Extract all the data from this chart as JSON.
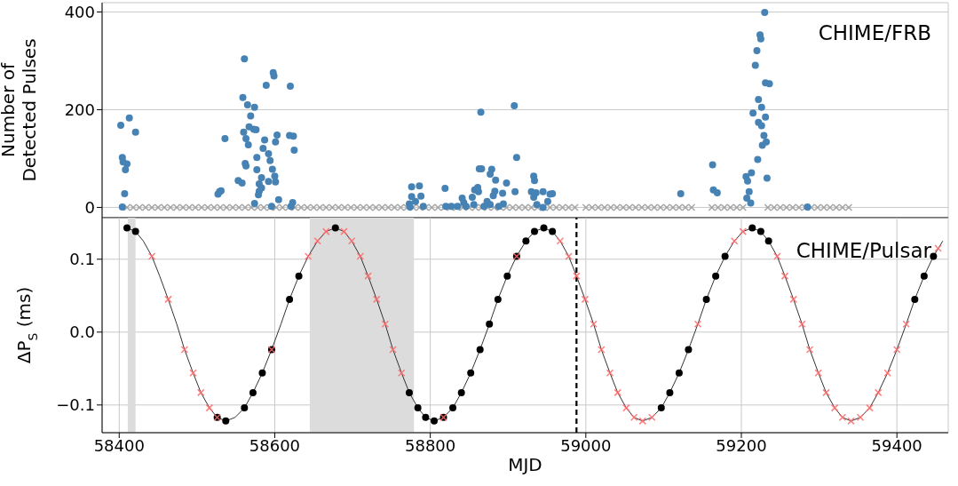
{
  "chart_data": [
    {
      "type": "scatter",
      "ylabel": "Number of\nDetected Pulses",
      "xlim": [
        58378,
        59466
      ],
      "xticks": [
        58400,
        58600,
        58800,
        59000,
        59200,
        59400
      ],
      "ylim": [
        -21,
        419
      ],
      "yticks": [
        0,
        200,
        400
      ],
      "grid": true,
      "tick_labels": "y",
      "annotations": [
        "CHIME/FRB"
      ],
      "series": [
        {
          "color": "#999999",
          "marker": "cross",
          "x": [
            58410,
            58418,
            58426,
            58434,
            58442,
            58450,
            58458,
            58466,
            58474,
            58482,
            58490,
            58498,
            58506,
            58514,
            58522,
            58530,
            58538,
            58546,
            58554,
            58562,
            58570,
            58578,
            58586,
            58594,
            58602,
            58610,
            58618,
            58626,
            58634,
            58642,
            58650,
            58658,
            58666,
            58674,
            58682,
            58690,
            58698,
            58706,
            58714,
            58722,
            58730,
            58738,
            58746,
            58754,
            58762,
            58770,
            58778,
            58786,
            58794,
            58802,
            58810,
            58818,
            58826,
            58834,
            58842,
            58850,
            58858,
            58866,
            58874,
            58882,
            58890,
            58898,
            58906,
            58914,
            58922,
            58930,
            58938,
            58946,
            58954,
            58962,
            58970,
            58978,
            58986,
            59000,
            59008,
            59016,
            59024,
            59032,
            59040,
            59048,
            59056,
            59064,
            59072,
            59080,
            59088,
            59096,
            59104,
            59112,
            59120,
            59128,
            59136,
            59162,
            59170,
            59178,
            59186,
            59194,
            59202,
            59234,
            59242,
            59250,
            59258,
            59266,
            59274,
            59282,
            59290,
            59298,
            59306,
            59314,
            59322,
            59330,
            59338
          ],
          "values": [
            0,
            0,
            0,
            0,
            0,
            0,
            0,
            0,
            0,
            0,
            0,
            0,
            0,
            0,
            0,
            0,
            0,
            0,
            0,
            0,
            0,
            0,
            0,
            0,
            0,
            0,
            0,
            0,
            0,
            0,
            0,
            0,
            0,
            0,
            0,
            0,
            0,
            0,
            0,
            0,
            0,
            0,
            0,
            0,
            0,
            0,
            0,
            0,
            0,
            0,
            0,
            0,
            0,
            0,
            0,
            0,
            0,
            0,
            0,
            0,
            0,
            0,
            0,
            0,
            0,
            0,
            0,
            0,
            0,
            0,
            0,
            0,
            0,
            0,
            0,
            0,
            0,
            0,
            0,
            0,
            0,
            0,
            0,
            0,
            0,
            0,
            0,
            0,
            0,
            0,
            0,
            0,
            0,
            0,
            0,
            0,
            0,
            0,
            0,
            0,
            0,
            0,
            0,
            0,
            0,
            0,
            0,
            0,
            0,
            0,
            0
          ]
        },
        {
          "color": "#4682b4",
          "marker": "circle",
          "x": [
            58402,
            58413,
            58421,
            58404,
            58405,
            58410,
            58408,
            58407,
            58404,
            58561,
            58559,
            58565,
            58574,
            58569,
            58567,
            58573,
            58576,
            58560,
            58563,
            58566,
            58536,
            58587,
            58585,
            58577,
            58592,
            58594,
            58562,
            58563,
            58577,
            58597,
            58583,
            58553,
            58558,
            58580,
            58592,
            58600,
            58601,
            58583,
            58580,
            58579,
            58527,
            58529,
            58531,
            58574,
            58596,
            58605,
            58598,
            58599,
            58589,
            58620,
            58603,
            58601,
            58619,
            58624,
            58625,
            58621,
            58623,
            58776,
            58786,
            58776,
            58788,
            58781,
            58773,
            58791,
            58774,
            58819,
            58820,
            58827,
            58835,
            58865,
            58908,
            58911,
            58863,
            58866,
            58879,
            58877,
            58884,
            58898,
            58909,
            58893,
            58857,
            58861,
            58862,
            58883,
            58841,
            58843,
            58854,
            58856,
            58873,
            58877,
            58881,
            58869,
            58888,
            58894,
            58846,
            58933,
            58934,
            58930,
            58936,
            58933,
            58937,
            58945,
            58945,
            58954,
            58951,
            58957,
            59122,
            59163,
            59164,
            59169,
            59230,
            59224,
            59225,
            59220,
            59218,
            59231,
            59236,
            59222,
            59226,
            59215,
            59231,
            59222,
            59226,
            59229,
            59232,
            59227,
            59221,
            59213,
            59233,
            59206,
            59208,
            59210,
            59207,
            59212,
            59285
          ],
          "values": [
            168,
            183,
            154,
            102,
            93,
            89,
            77,
            28,
            1,
            304,
            225,
            210,
            205,
            187,
            165,
            160,
            159,
            154,
            141,
            128,
            141,
            138,
            121,
            102,
            110,
            96,
            90,
            85,
            77,
            78,
            61,
            55,
            50,
            48,
            53,
            64,
            52,
            40,
            33,
            26,
            27,
            32,
            34,
            8,
            2,
            16,
            276,
            269,
            250,
            248,
            148,
            134,
            147,
            146,
            117,
            2,
            10,
            42,
            44,
            22,
            23,
            12,
            7,
            2,
            1,
            39,
            2,
            2,
            2,
            195,
            208,
            102,
            79,
            79,
            78,
            68,
            56,
            50,
            32,
            29,
            36,
            41,
            32,
            33,
            19,
            10,
            21,
            6,
            12,
            6,
            24,
            2,
            2,
            7,
            2,
            64,
            55,
            32,
            30,
            21,
            6,
            0,
            32,
            27,
            12,
            28,
            28,
            87,
            36,
            30,
            399,
            353,
            345,
            321,
            291,
            255,
            253,
            221,
            205,
            193,
            185,
            174,
            167,
            147,
            134,
            127,
            98,
            71,
            60,
            63,
            54,
            32,
            19,
            9,
            1
          ]
        }
      ]
    },
    {
      "type": "line",
      "xlabel": "MJD",
      "ylabel": "ΔP$_{S}$ (ms)",
      "xlim": [
        58378,
        59466
      ],
      "xticks": [
        58400,
        58600,
        58800,
        59000,
        59200,
        59400
      ],
      "ylim": [
        -0.138,
        0.157
      ],
      "yticks": [
        {
          "value": -0.1,
          "label": "−0.1"
        },
        {
          "value": 0,
          "label": "0.0"
        },
        {
          "value": 0.1,
          "label": "0.1"
        }
      ],
      "grid": true,
      "annotations": [
        "CHIME/Pulsar"
      ],
      "bands": [
        {
          "axis": "x",
          "from": 58411,
          "to": 58421,
          "color": "#dcdcdc"
        },
        {
          "axis": "x",
          "from": 58645,
          "to": 58779,
          "color": "#dcdcdc"
        }
      ],
      "ref_lines": [
        {
          "axis": "x",
          "value": 58988,
          "color": "#000000",
          "line_style": "dashed"
        }
      ],
      "series": [
        {
          "type": "line",
          "color": "#333333",
          "marker": "none",
          "x": [
            58410,
            58421,
            58431,
            58442,
            58452,
            58463,
            58474,
            58484,
            58495,
            58505,
            58516,
            58526,
            58537,
            58549,
            58561,
            58572,
            58584,
            58596,
            58608,
            58619,
            58631,
            58643,
            58655,
            58666,
            58678,
            58689,
            58699,
            58710,
            58720,
            58731,
            58742,
            58752,
            58763,
            58773,
            58784,
            58794,
            58805,
            58817,
            58829,
            58840,
            58852,
            58864,
            58876,
            58887,
            58899,
            58911,
            58923,
            58934,
            58946,
            58957,
            58967,
            58978,
            58988,
            58999,
            59010,
            59020,
            59031,
            59041,
            59052,
            59062,
            59073,
            59085,
            59097,
            59108,
            59120,
            59132,
            59144,
            59155,
            59167,
            59179,
            59191,
            59202,
            59214,
            59225,
            59235,
            59246,
            59256,
            59267,
            59278,
            59288,
            59299,
            59309,
            59320,
            59330,
            59341,
            59353,
            59365,
            59376,
            59388,
            59400,
            59412,
            59423,
            59435,
            59447,
            59459
          ],
          "values": [
            0.143,
            0.138,
            0.125,
            0.104,
            0.077,
            0.045,
            0.011,
            -0.024,
            -0.056,
            -0.083,
            -0.104,
            -0.117,
            -0.122,
            -0.117,
            -0.104,
            -0.083,
            -0.056,
            -0.024,
            0.011,
            0.045,
            0.077,
            0.104,
            0.125,
            0.138,
            0.143,
            0.138,
            0.125,
            0.104,
            0.077,
            0.045,
            0.011,
            -0.024,
            -0.056,
            -0.083,
            -0.104,
            -0.117,
            -0.122,
            -0.117,
            -0.104,
            -0.083,
            -0.056,
            -0.024,
            0.011,
            0.045,
            0.077,
            0.104,
            0.125,
            0.138,
            0.143,
            0.138,
            0.125,
            0.104,
            0.077,
            0.045,
            0.011,
            -0.024,
            -0.056,
            -0.083,
            -0.104,
            -0.117,
            -0.122,
            -0.117,
            -0.104,
            -0.083,
            -0.056,
            -0.024,
            0.011,
            0.045,
            0.077,
            0.104,
            0.125,
            0.138,
            0.143,
            0.138,
            0.125,
            0.104,
            0.077,
            0.045,
            0.011,
            -0.024,
            -0.056,
            -0.083,
            -0.104,
            -0.117,
            -0.122,
            -0.117,
            -0.104,
            -0.083,
            -0.056,
            -0.024,
            0.011,
            0.045,
            0.077,
            0.104,
            0.125
          ]
        },
        {
          "type": "scatter",
          "color": "#000000",
          "marker": "circle",
          "x": [
            58410,
            58421,
            58526,
            58537,
            58561,
            58572,
            58584,
            58596,
            58619,
            58631,
            58678,
            58773,
            58784,
            58794,
            58805,
            58817,
            58829,
            58840,
            58852,
            58864,
            58876,
            58887,
            58899,
            58911,
            58923,
            58934,
            58946,
            58957,
            59097,
            59108,
            59120,
            59132,
            59155,
            59167,
            59179,
            59214,
            59225,
            59235,
            59423,
            59435,
            59447
          ],
          "values": [
            0.143,
            0.138,
            -0.117,
            -0.122,
            -0.104,
            -0.083,
            -0.056,
            -0.024,
            0.045,
            0.077,
            0.143,
            -0.083,
            -0.104,
            -0.117,
            -0.122,
            -0.117,
            -0.104,
            -0.083,
            -0.056,
            -0.024,
            0.011,
            0.045,
            0.077,
            0.104,
            0.125,
            0.138,
            0.143,
            0.138,
            -0.104,
            -0.083,
            -0.056,
            -0.024,
            0.045,
            0.077,
            0.104,
            0.143,
            0.138,
            0.125,
            0.045,
            0.077,
            0.104
          ]
        },
        {
          "type": "scatter",
          "color": "#ff6b6b",
          "marker": "cross",
          "x": [
            58442,
            58463,
            58484,
            58495,
            58505,
            58516,
            58526,
            58596,
            58643,
            58655,
            58666,
            58689,
            58699,
            58710,
            58720,
            58731,
            58742,
            58752,
            58763,
            58817,
            58911,
            58967,
            58978,
            58988,
            58999,
            59010,
            59020,
            59031,
            59041,
            59052,
            59062,
            59073,
            59085,
            59144,
            59191,
            59202,
            59246,
            59256,
            59267,
            59278,
            59288,
            59299,
            59309,
            59320,
            59330,
            59341,
            59353,
            59365,
            59376,
            59388,
            59400,
            59412,
            59453
          ],
          "values": [
            0.104,
            0.045,
            -0.024,
            -0.056,
            -0.083,
            -0.104,
            -0.117,
            -0.024,
            0.104,
            0.125,
            0.138,
            0.138,
            0.125,
            0.104,
            0.077,
            0.045,
            0.011,
            -0.024,
            -0.056,
            -0.117,
            0.104,
            0.125,
            0.104,
            0.077,
            0.045,
            0.011,
            -0.024,
            -0.056,
            -0.083,
            -0.104,
            -0.117,
            -0.122,
            -0.117,
            0.011,
            0.125,
            0.138,
            0.104,
            0.077,
            0.045,
            0.011,
            -0.024,
            -0.056,
            -0.083,
            -0.104,
            -0.117,
            -0.122,
            -0.117,
            -0.104,
            -0.083,
            -0.056,
            -0.024,
            0.011,
            0.115
          ]
        }
      ]
    }
  ]
}
